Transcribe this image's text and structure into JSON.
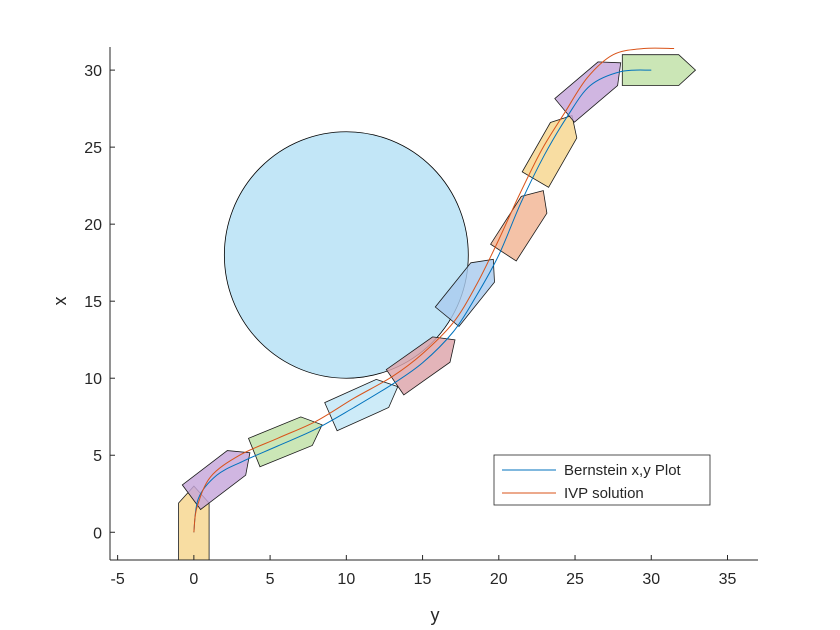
{
  "chart_data": {
    "type": "line",
    "title": "",
    "xlabel": "y",
    "ylabel": "x",
    "xlim": [
      -5.5,
      37
    ],
    "ylim": [
      -1.8,
      31.5
    ],
    "xticks": [
      -5,
      0,
      5,
      10,
      15,
      20,
      25,
      30,
      35
    ],
    "yticks": [
      0,
      5,
      10,
      15,
      20,
      25,
      30
    ],
    "xtick_labels": [
      "-5",
      "0",
      "5",
      "10",
      "15",
      "20",
      "25",
      "30",
      "35"
    ],
    "ytick_labels": [
      "0",
      "5",
      "10",
      "15",
      "20",
      "25",
      "30"
    ],
    "grid": false,
    "legend_position": "bottom-right",
    "series": [
      {
        "name": "Bernstein x,y Plot",
        "color": "#0072BD",
        "points": [
          [
            0,
            0
          ],
          [
            0.3,
            2.2
          ],
          [
            1.5,
            3.7
          ],
          [
            3.2,
            4.6
          ],
          [
            5.5,
            5.6
          ],
          [
            8,
            6.7
          ],
          [
            10.5,
            8.1
          ],
          [
            13,
            9.6
          ],
          [
            15,
            11
          ],
          [
            17,
            13
          ],
          [
            18.5,
            15.3
          ],
          [
            20,
            18
          ],
          [
            21.5,
            21.5
          ],
          [
            23,
            24.5
          ],
          [
            24.5,
            27
          ],
          [
            26,
            29
          ],
          [
            28,
            29.9
          ],
          [
            30,
            30
          ]
        ]
      },
      {
        "name": "IVP solution",
        "color": "#D95319",
        "points": [
          [
            0,
            0
          ],
          [
            0.2,
            1.6
          ],
          [
            1.1,
            3.6
          ],
          [
            3,
            5
          ],
          [
            5.5,
            6.1
          ],
          [
            8,
            7.2
          ],
          [
            10.5,
            8.7
          ],
          [
            13,
            10.1
          ],
          [
            15,
            11.6
          ],
          [
            17,
            13.6
          ],
          [
            18.5,
            16
          ],
          [
            20,
            19
          ],
          [
            21.3,
            21.8
          ],
          [
            22.8,
            24.8
          ],
          [
            24.3,
            27.2
          ],
          [
            25.8,
            29.5
          ],
          [
            27.5,
            31
          ],
          [
            29.5,
            31.4
          ],
          [
            31.5,
            31.4
          ]
        ]
      }
    ],
    "obstacle": {
      "shape": "circle",
      "center": [
        10,
        18
      ],
      "radius": 8,
      "fill": "#C2E6F7",
      "edge": "#000000"
    },
    "boats": [
      {
        "y": 0.0,
        "x": 0.4,
        "heading": 90,
        "fill": "#F7D58E"
      },
      {
        "y": 1.6,
        "x": 3.6,
        "heading": 37,
        "fill": "#C6A6DA"
      },
      {
        "y": 6.0,
        "x": 6.0,
        "heading": 22,
        "fill": "#BFE0A6"
      },
      {
        "y": 11.0,
        "x": 8.4,
        "heading": 24,
        "fill": "#C2E6F7"
      },
      {
        "y": 15.0,
        "x": 11.0,
        "heading": 35,
        "fill": "#DDA3AA"
      },
      {
        "y": 18.0,
        "x": 15.7,
        "heading": 51,
        "fill": "#A9CBEE"
      },
      {
        "y": 21.5,
        "x": 20.0,
        "heading": 57,
        "fill": "#F1B594"
      },
      {
        "y": 23.5,
        "x": 24.8,
        "heading": 60,
        "fill": "#F7D58E"
      },
      {
        "y": 26.0,
        "x": 28.8,
        "heading": 40,
        "fill": "#C6A6DA"
      },
      {
        "y": 30.3,
        "x": 30.0,
        "heading": 0,
        "fill": "#BFE0A6"
      }
    ]
  }
}
